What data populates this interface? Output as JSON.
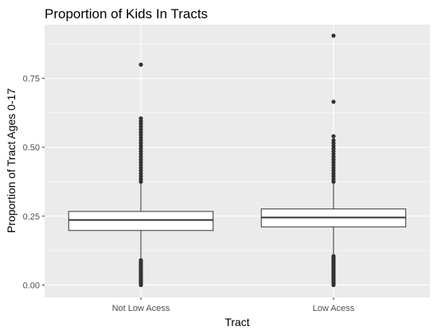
{
  "chart_data": {
    "type": "boxplot",
    "title": "Proportion of Kids In Tracts",
    "xlabel": "Tract",
    "ylabel": "Proportion of Tract Ages 0-17",
    "categories": [
      "Not Low Acess",
      "Low Acess"
    ],
    "ylim": [
      -0.045,
      0.945
    ],
    "yticks": [
      0.0,
      0.25,
      0.5,
      0.75
    ],
    "ytick_labels": [
      "0.00",
      "0.25",
      "0.50",
      "0.75"
    ],
    "grid": true,
    "legend": "none",
    "boxes": [
      {
        "category": "Not Low Acess",
        "q1": 0.198,
        "median": 0.236,
        "q3": 0.267,
        "whisker_low": 0.097,
        "whisker_high": 0.37,
        "outliers_low": [
          0.0,
          0.005,
          0.01,
          0.015,
          0.02,
          0.025,
          0.03,
          0.035,
          0.04,
          0.045,
          0.05,
          0.055,
          0.06,
          0.065,
          0.07,
          0.075,
          0.08,
          0.085,
          0.09
        ],
        "outliers_high": [
          0.375,
          0.385,
          0.395,
          0.405,
          0.415,
          0.425,
          0.435,
          0.445,
          0.455,
          0.465,
          0.475,
          0.485,
          0.495,
          0.505,
          0.515,
          0.525,
          0.535,
          0.545,
          0.555,
          0.565,
          0.575,
          0.585,
          0.595,
          0.605,
          0.8
        ]
      },
      {
        "category": "Low Acess",
        "q1": 0.211,
        "median": 0.245,
        "q3": 0.276,
        "whisker_low": 0.112,
        "whisker_high": 0.37,
        "outliers_low": [
          0.0,
          0.005,
          0.01,
          0.015,
          0.02,
          0.025,
          0.03,
          0.035,
          0.04,
          0.045,
          0.05,
          0.055,
          0.06,
          0.065,
          0.07,
          0.075,
          0.08,
          0.085,
          0.09,
          0.095,
          0.1,
          0.105
        ],
        "outliers_high": [
          0.375,
          0.385,
          0.395,
          0.405,
          0.415,
          0.425,
          0.435,
          0.445,
          0.455,
          0.465,
          0.475,
          0.485,
          0.495,
          0.505,
          0.515,
          0.525,
          0.54,
          0.665,
          0.905
        ]
      }
    ],
    "colors": {
      "panel_background": "#ebebeb",
      "grid_major": "#ffffff",
      "box_fill": "#ffffff",
      "box_line": "#333333",
      "outlier": "#333333",
      "tick_label": "#4d4d4d"
    }
  }
}
